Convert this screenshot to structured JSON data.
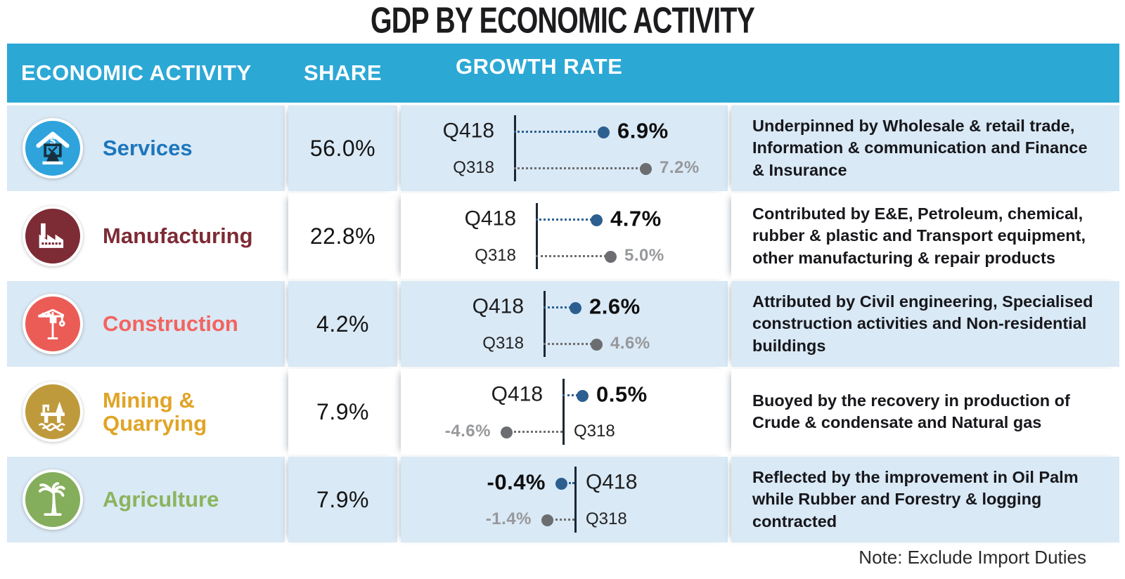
{
  "title": "GDP BY ECONOMIC ACTIVITY",
  "note": "Note: Exclude Import Duties",
  "columns": {
    "activity": "ECONOMIC ACTIVITY",
    "share": "SHARE",
    "growth": "GROWTH RATE"
  },
  "theme": {
    "header_bg": "#2CA8D5",
    "row_alt_bg": "#D9E9F5",
    "row_bg": "#FFFFFF",
    "q418_color": "#2C5F90",
    "q318_color": "#6B6D70",
    "q318_text_color": "#96989B",
    "axis_color": "#1D2733"
  },
  "chart_data": {
    "type": "table",
    "title": "GDP BY ECONOMIC ACTIVITY",
    "categories": [
      "Services",
      "Manufacturing",
      "Construction",
      "Mining & Quarrying",
      "Agriculture"
    ],
    "series": [
      {
        "name": "Share of GDP (%)",
        "values": [
          56.0,
          22.8,
          4.2,
          7.9,
          7.9
        ]
      },
      {
        "name": "Q418 growth rate (%)",
        "values": [
          6.9,
          4.7,
          2.6,
          0.5,
          -0.4
        ]
      },
      {
        "name": "Q318 growth rate (%)",
        "values": [
          7.2,
          5.0,
          4.6,
          -4.6,
          -1.4
        ]
      }
    ],
    "note": "Note: Exclude Import Duties",
    "legend_position": "inline",
    "grid": false
  },
  "rows": [
    {
      "name": "Services",
      "icon": "services-building-icon",
      "icon_bg": "#2FA3DC",
      "accent": "#1C76BC",
      "label": "Services",
      "share": "56.0%",
      "desc": "Underpinned by Wholesale & retail trade, Information & communication and  Finance & Insurance",
      "zebra": "blue",
      "chart": {
        "axis_x": 161,
        "lines": [
          {
            "quarter": "Q418",
            "value": "6.9%",
            "num": 6.9,
            "side": "pos",
            "len": 127,
            "series": "q418"
          },
          {
            "quarter": "Q318",
            "value": "7.2%",
            "num": 7.2,
            "side": "pos",
            "len": 187,
            "series": "q318"
          }
        ]
      }
    },
    {
      "name": "Manufacturing",
      "icon": "factory-icon",
      "icon_bg": "#7D2B35",
      "accent": "#7D2B35",
      "label": "Manufacturing",
      "share": "22.8%",
      "desc": "Contributed by E&E, Petroleum, chemical, rubber & plastic and Transport equipment, other manufacturing & repair products",
      "zebra": "white",
      "chart": {
        "axis_x": 192,
        "lines": [
          {
            "quarter": "Q418",
            "value": "4.7%",
            "num": 4.7,
            "side": "pos",
            "len": 86,
            "series": "q418"
          },
          {
            "quarter": "Q318",
            "value": "5.0%",
            "num": 5.0,
            "side": "pos",
            "len": 106,
            "series": "q318"
          }
        ]
      }
    },
    {
      "name": "Construction",
      "icon": "crane-icon",
      "icon_bg": "#EA5C55",
      "accent": "#F26460",
      "label": "Construction",
      "share": "4.2%",
      "desc": "Attributed by Civil engineering, Specialised construction activities and Non-residential buildings",
      "zebra": "blue",
      "chart": {
        "axis_x": 203,
        "lines": [
          {
            "quarter": "Q418",
            "value": "2.6%",
            "num": 2.6,
            "side": "pos",
            "len": 45,
            "series": "q418"
          },
          {
            "quarter": "Q318",
            "value": "4.6%",
            "num": 4.6,
            "side": "pos",
            "len": 75,
            "series": "q318"
          }
        ]
      }
    },
    {
      "name": "Mining & Quarrying",
      "icon": "oil-rig-icon",
      "icon_bg": "#BF9A3C",
      "accent": "#E0A426",
      "label": "Mining &\nQuarrying",
      "share": "7.9%",
      "desc": "Buoyed by the recovery in production of Crude & condensate and Natural gas",
      "zebra": "white",
      "chart": {
        "axis_x": 230,
        "lines": [
          {
            "quarter": "Q418",
            "value": "0.5%",
            "num": 0.5,
            "side": "pos",
            "len": 28,
            "series": "q418"
          },
          {
            "quarter": "Q318",
            "value": "-4.6%",
            "num": -4.6,
            "side": "neg",
            "len": 80,
            "series": "q318"
          }
        ]
      }
    },
    {
      "name": "Agriculture",
      "icon": "palm-tree-icon",
      "icon_bg": "#84AE5B",
      "accent": "#8AB45F",
      "label": "Agriculture",
      "share": "7.9%",
      "desc": "Reflected by the improvement in Oil Palm while Rubber and Forestry & logging contracted",
      "zebra": "blue",
      "chart": {
        "axis_x": 247,
        "lines": [
          {
            "quarter": "Q418",
            "value": "-0.4%",
            "num": -0.4,
            "side": "neg",
            "len": 19,
            "series": "q418"
          },
          {
            "quarter": "Q318",
            "value": "-1.4%",
            "num": -1.4,
            "side": "neg",
            "len": 39,
            "series": "q318"
          }
        ]
      }
    }
  ]
}
